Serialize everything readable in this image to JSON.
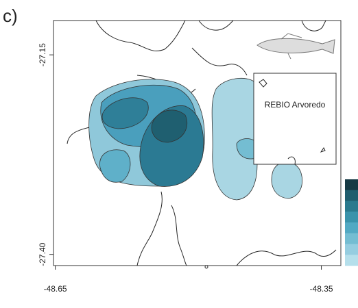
{
  "panel_label": "c)",
  "map": {
    "inset_label": "REBIO Arvoredo",
    "xlim": [
      -48.652,
      -48.328
    ],
    "ylim": [
      -27.414,
      -27.107
    ],
    "xticks": [
      -48.65,
      -48.35
    ],
    "yticks": [
      -27.15,
      {
        "value": -27.4,
        "label": "-27.40"
      }
    ],
    "colorbar": [
      "#163a44",
      "#1f5d6e",
      "#2a7a8e",
      "#3a93ab",
      "#52a9c3",
      "#74bdd2",
      "#95cde0",
      "#b5dfeb"
    ]
  }
}
